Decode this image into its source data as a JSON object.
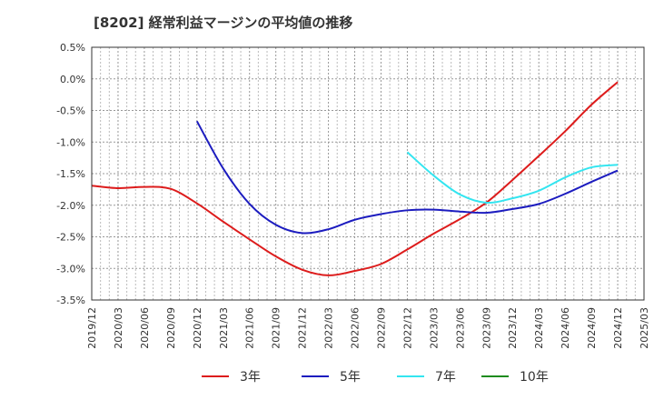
{
  "chart_data": {
    "type": "line",
    "title": "[8202]  経常利益マージンの平均値の推移",
    "xlabel": "",
    "ylabel": "",
    "x_ticks": [
      "2019/12",
      "2020/03",
      "2020/06",
      "2020/09",
      "2020/12",
      "2021/03",
      "2021/06",
      "2021/09",
      "2021/12",
      "2022/03",
      "2022/06",
      "2022/09",
      "2022/12",
      "2023/03",
      "2023/06",
      "2023/09",
      "2023/12",
      "2024/03",
      "2024/06",
      "2024/09",
      "2024/12",
      "2025/03"
    ],
    "y_ticks": [
      "0.5%",
      "0.0%",
      "-0.5%",
      "-1.0%",
      "-1.5%",
      "-2.0%",
      "-2.5%",
      "-3.0%",
      "-3.5%"
    ],
    "y_tick_values": [
      0.5,
      0.0,
      -0.5,
      -1.0,
      -1.5,
      -2.0,
      -2.5,
      -3.0,
      -3.5
    ],
    "ylim": [
      -3.5,
      0.5
    ],
    "grid": true,
    "legend_position": "bottom",
    "series": [
      {
        "name": "3年",
        "color": "#dd1c1c",
        "x": [
          "2019/12",
          "2020/03",
          "2020/06",
          "2020/09",
          "2020/12",
          "2021/03",
          "2021/06",
          "2021/09",
          "2021/12",
          "2022/03",
          "2022/06",
          "2022/09",
          "2022/12",
          "2023/03",
          "2023/06",
          "2023/09",
          "2023/12",
          "2024/03",
          "2024/06",
          "2024/09",
          "2024/12"
        ],
        "values": [
          -1.69,
          -1.73,
          -1.71,
          -1.74,
          -1.97,
          -2.26,
          -2.54,
          -2.81,
          -3.02,
          -3.11,
          -3.04,
          -2.93,
          -2.7,
          -2.45,
          -2.22,
          -1.96,
          -1.6,
          -1.22,
          -0.83,
          -0.41,
          -0.05
        ]
      },
      {
        "name": "5年",
        "color": "#1c1cbf",
        "x": [
          "2020/12",
          "2021/03",
          "2021/06",
          "2021/09",
          "2021/12",
          "2022/03",
          "2022/06",
          "2022/09",
          "2022/12",
          "2023/03",
          "2023/06",
          "2023/09",
          "2023/12",
          "2024/03",
          "2024/06",
          "2024/09",
          "2024/12"
        ],
        "values": [
          -0.67,
          -1.42,
          -1.98,
          -2.31,
          -2.44,
          -2.38,
          -2.23,
          -2.14,
          -2.08,
          -2.07,
          -2.1,
          -2.12,
          -2.06,
          -1.98,
          -1.82,
          -1.63,
          -1.45
        ]
      },
      {
        "name": "7年",
        "color": "#33e5f0",
        "x": [
          "2022/12",
          "2023/03",
          "2023/06",
          "2023/09",
          "2023/12",
          "2024/03",
          "2024/06",
          "2024/09",
          "2024/12"
        ],
        "values": [
          -1.16,
          -1.53,
          -1.83,
          -1.96,
          -1.89,
          -1.77,
          -1.56,
          -1.4,
          -1.36
        ]
      },
      {
        "name": "10年",
        "color": "#1e8c1e",
        "x": [],
        "values": []
      }
    ]
  }
}
